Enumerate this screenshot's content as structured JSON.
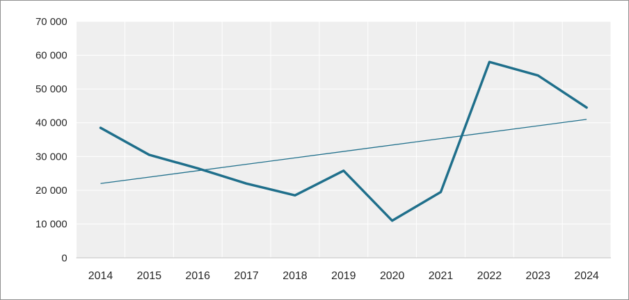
{
  "chart_data": {
    "type": "line",
    "title": "",
    "xlabel": "",
    "ylabel": "",
    "x": [
      "2014",
      "2015",
      "2016",
      "2017",
      "2018",
      "2019",
      "2020",
      "2021",
      "2022",
      "2023",
      "2024"
    ],
    "series": [
      {
        "name": "values",
        "values": [
          38500,
          30500,
          26500,
          22000,
          18500,
          25800,
          11000,
          19500,
          58000,
          54000,
          44500
        ]
      },
      {
        "name": "linear-trendline",
        "type": "trendline",
        "start": 22000,
        "end": 41000
      }
    ],
    "ylim": [
      0,
      70000
    ],
    "ytick_step": 10000,
    "ytick_labels": [
      "0",
      "10 000",
      "20 000",
      "30 000",
      "40 000",
      "50 000",
      "60 000",
      "70 000"
    ],
    "grid": true,
    "legend_position": "none",
    "colors": {
      "line": "#1F6F8B",
      "trend": "#1F6F8B",
      "plot_bg": "#efefef",
      "grid": "#ffffff",
      "axis": "#bfbfbf",
      "text": "#262626",
      "frame_border": "#8f8f8f"
    }
  }
}
